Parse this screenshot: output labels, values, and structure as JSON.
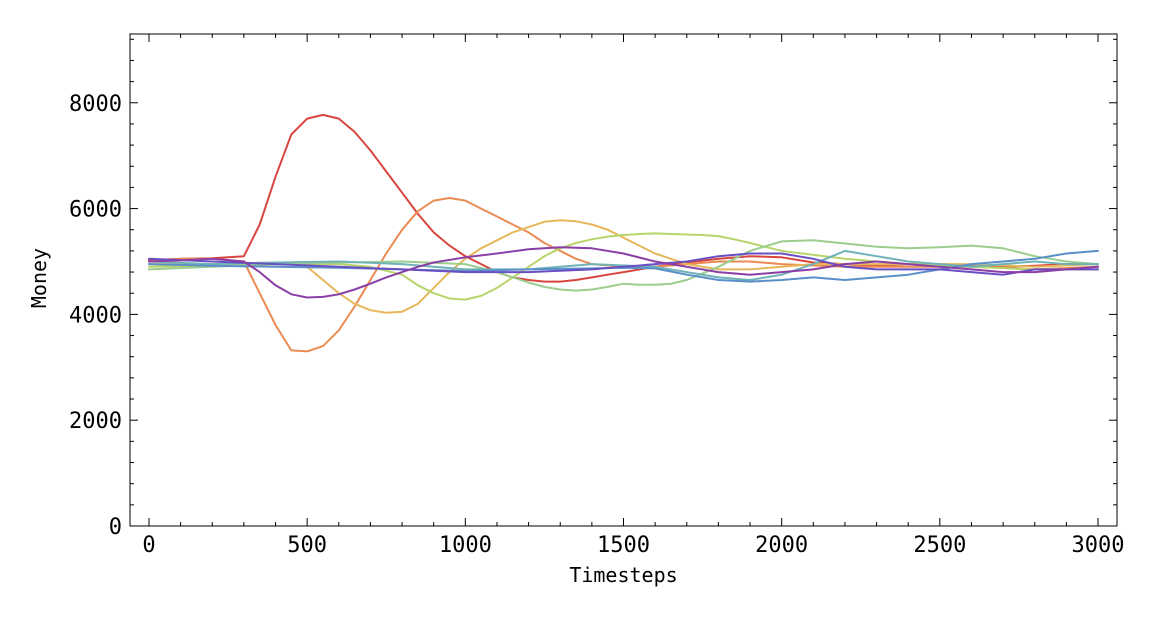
{
  "chart_data": {
    "type": "line",
    "title": "",
    "xlabel": "Timesteps",
    "ylabel": "Money",
    "xlim": [
      -60,
      3060
    ],
    "ylim": [
      0,
      9300
    ],
    "xticks": [
      0,
      500,
      1000,
      1500,
      2000,
      2500,
      3000
    ],
    "xtick_labels": [
      "0",
      "500",
      "1000",
      "1500",
      "2000",
      "2500",
      "3000"
    ],
    "yticks": [
      0,
      2000,
      4000,
      6000,
      8000
    ],
    "ytick_labels": [
      "0",
      "2000",
      "4000",
      "6000",
      "8000"
    ],
    "x_minor_step": 100,
    "y_minor_step": 400,
    "grid": false,
    "series": [
      {
        "color": "#d9453f",
        "x": [
          0,
          100,
          200,
          300,
          350,
          400,
          450,
          500,
          550,
          600,
          650,
          700,
          750,
          800,
          850,
          900,
          950,
          1000,
          1050,
          1100,
          1150,
          1200,
          1250,
          1300,
          1350,
          1400,
          1450,
          1500,
          1600,
          1700,
          1800,
          1900,
          2000,
          2100,
          2200,
          2300,
          2400,
          2500,
          2600,
          2700,
          2800,
          2900,
          3000
        ],
        "values": [
          5020,
          5050,
          5060,
          5100,
          5700,
          6600,
          7400,
          7700,
          7770,
          7700,
          7450,
          7100,
          6700,
          6300,
          5900,
          5550,
          5300,
          5100,
          4950,
          4800,
          4700,
          4650,
          4620,
          4620,
          4650,
          4700,
          4750,
          4800,
          4900,
          4980,
          5050,
          5100,
          5080,
          4980,
          4950,
          4920,
          4950,
          4950,
          4930,
          4900,
          4920,
          4950,
          4950
        ]
      },
      {
        "color": "#eb8a52",
        "x": [
          0,
          100,
          200,
          300,
          350,
          400,
          450,
          500,
          550,
          600,
          650,
          700,
          750,
          800,
          850,
          900,
          950,
          1000,
          1050,
          1100,
          1150,
          1200,
          1250,
          1300,
          1350,
          1400,
          1500,
          1600,
          1700,
          1800,
          1900,
          2000,
          2200,
          2400,
          2600,
          2800,
          3000
        ],
        "values": [
          5000,
          5050,
          5050,
          5000,
          4400,
          3800,
          3320,
          3300,
          3400,
          3700,
          4150,
          4650,
          5150,
          5600,
          5950,
          6150,
          6200,
          6150,
          6000,
          5850,
          5700,
          5550,
          5350,
          5200,
          5050,
          4950,
          4900,
          4900,
          4950,
          5000,
          5000,
          4950,
          4900,
          4900,
          4900,
          4850,
          4900
        ]
      },
      {
        "color": "#e6b85a",
        "x": [
          0,
          200,
          400,
          500,
          550,
          600,
          650,
          700,
          750,
          800,
          850,
          900,
          950,
          1000,
          1050,
          1100,
          1150,
          1200,
          1250,
          1300,
          1350,
          1400,
          1450,
          1500,
          1550,
          1600,
          1700,
          1800,
          1900,
          2000,
          2100,
          2200,
          2400,
          2600,
          2800,
          3000
        ],
        "values": [
          4950,
          4950,
          4980,
          4900,
          4650,
          4400,
          4200,
          4080,
          4030,
          4050,
          4200,
          4500,
          4800,
          5050,
          5250,
          5400,
          5550,
          5650,
          5750,
          5780,
          5760,
          5700,
          5600,
          5450,
          5300,
          5150,
          4950,
          4850,
          4850,
          4900,
          4950,
          4950,
          4950,
          4950,
          4900,
          4950
        ]
      },
      {
        "color": "#b8d46a",
        "x": [
          0,
          200,
          400,
          600,
          700,
          800,
          850,
          900,
          950,
          1000,
          1050,
          1100,
          1150,
          1200,
          1250,
          1300,
          1350,
          1400,
          1450,
          1500,
          1550,
          1600,
          1650,
          1700,
          1750,
          1800,
          1850,
          1900,
          2000,
          2200,
          2400,
          2600,
          2800,
          3000
        ],
        "values": [
          4900,
          4920,
          4950,
          4950,
          4900,
          4750,
          4550,
          4400,
          4300,
          4280,
          4350,
          4500,
          4700,
          4900,
          5100,
          5250,
          5350,
          5420,
          5470,
          5500,
          5520,
          5530,
          5520,
          5510,
          5500,
          5480,
          5420,
          5350,
          5200,
          5050,
          4950,
          4900,
          4850,
          4850
        ]
      },
      {
        "color": "#9bce8e",
        "x": [
          0,
          200,
          400,
          600,
          800,
          1000,
          1100,
          1200,
          1250,
          1300,
          1350,
          1400,
          1450,
          1500,
          1550,
          1600,
          1650,
          1700,
          1800,
          1900,
          2000,
          2100,
          2200,
          2300,
          2400,
          2500,
          2600,
          2700,
          2800,
          2900,
          3000
        ],
        "values": [
          4850,
          4900,
          4950,
          4980,
          5000,
          4950,
          4800,
          4600,
          4520,
          4470,
          4450,
          4470,
          4520,
          4580,
          4560,
          4560,
          4580,
          4650,
          4900,
          5200,
          5380,
          5400,
          5340,
          5280,
          5250,
          5270,
          5300,
          5250,
          5100,
          5000,
          4950
        ]
      },
      {
        "color": "#6fb3b8",
        "x": [
          0,
          200,
          400,
          600,
          800,
          1000,
          1200,
          1400,
          1600,
          1700,
          1800,
          1900,
          2000,
          2100,
          2200,
          2300,
          2400,
          2500,
          2600,
          2700,
          2800,
          2900,
          3000
        ],
        "values": [
          5000,
          4950,
          4980,
          5000,
          4950,
          4850,
          4850,
          4950,
          4900,
          4800,
          4700,
          4650,
          4750,
          4950,
          5200,
          5100,
          5000,
          4950,
          4900,
          4950,
          5000,
          4950,
          4950
        ]
      },
      {
        "color": "#5b8fc9",
        "x": [
          0,
          200,
          400,
          600,
          800,
          1000,
          1200,
          1400,
          1500,
          1600,
          1700,
          1800,
          1900,
          2000,
          2100,
          2200,
          2300,
          2400,
          2500,
          2600,
          2700,
          2800,
          2900,
          3000
        ],
        "values": [
          4950,
          4920,
          4900,
          4880,
          4850,
          4820,
          4850,
          4870,
          4880,
          4870,
          4750,
          4650,
          4620,
          4650,
          4700,
          4650,
          4700,
          4750,
          4850,
          4950,
          5000,
          5050,
          5150,
          5200
        ]
      },
      {
        "color": "#6a4fc4",
        "x": [
          0,
          200,
          400,
          600,
          800,
          1000,
          1200,
          1400,
          1500,
          1600,
          1700,
          1800,
          1900,
          2000,
          2100,
          2200,
          2300,
          2400,
          2500,
          2600,
          2700,
          2800,
          2900,
          3000
        ],
        "values": [
          5050,
          5000,
          4950,
          4900,
          4850,
          4800,
          4800,
          4850,
          4900,
          4950,
          5000,
          5100,
          5150,
          5150,
          5050,
          4900,
          4850,
          4850,
          4850,
          4800,
          4750,
          4850,
          4850,
          4850
        ]
      },
      {
        "color": "#8a3fa6",
        "x": [
          0,
          100,
          200,
          300,
          350,
          400,
          450,
          500,
          550,
          600,
          650,
          700,
          750,
          800,
          850,
          900,
          1000,
          1100,
          1200,
          1300,
          1400,
          1500,
          1600,
          1700,
          1800,
          1900,
          2000,
          2100,
          2200,
          2300,
          2400,
          2500,
          2600,
          2700,
          2800,
          2900,
          3000
        ],
        "values": [
          5000,
          5020,
          5050,
          5000,
          4800,
          4550,
          4380,
          4320,
          4330,
          4380,
          4470,
          4580,
          4700,
          4800,
          4900,
          4980,
          5080,
          5150,
          5230,
          5270,
          5250,
          5150,
          5000,
          4900,
          4800,
          4750,
          4800,
          4850,
          4950,
          5000,
          4950,
          4900,
          4850,
          4800,
          4800,
          4850,
          4900
        ]
      }
    ]
  }
}
